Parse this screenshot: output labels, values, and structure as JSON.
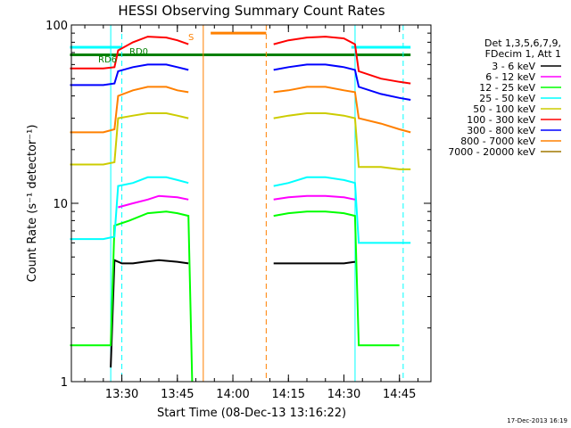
{
  "chart_data": {
    "type": "line",
    "title": "HESSI Observing Summary Count Rates",
    "xlabel": "Start Time (08-Dec-13 13:16:22)",
    "ylabel": "Count Rate (s⁻¹ detector⁻¹)",
    "yscale": "log",
    "ylim": [
      1,
      100
    ],
    "y_tick_labels": [
      "1",
      "10",
      "100"
    ],
    "x_tick_labels": [
      "13:30",
      "13:45",
      "14:00",
      "14:15",
      "14:30",
      "14:45"
    ],
    "legend": {
      "placement": "right",
      "header": [
        "Det 1,3,5,6,7,9,",
        "FDecim 1, Att 1"
      ],
      "entries": [
        {
          "label": "3 - 6 keV",
          "color": "#000000"
        },
        {
          "label": "6 - 12 keV",
          "color": "#ff00ff"
        },
        {
          "label": "12 - 25 keV",
          "color": "#00ff00"
        },
        {
          "label": "25 - 50 keV",
          "color": "#00ffff"
        },
        {
          "label": "50 - 100 keV",
          "color": "#cccc00"
        },
        {
          "label": "100 - 300 keV",
          "color": "#ff0000"
        },
        {
          "label": "300 - 800 keV",
          "color": "#0000ff"
        },
        {
          "label": "800 - 7000 keV",
          "color": "#ff8000"
        },
        {
          "label": "7000 - 20000 keV",
          "color": "#a07800"
        }
      ]
    },
    "series": [
      {
        "name": "3 - 6 keV",
        "values": [
          [
            "13:16",
            null
          ],
          [
            "13:27",
            1.2
          ],
          [
            "13:28",
            4.8
          ],
          [
            "13:30",
            4.6
          ],
          [
            "13:33",
            4.6
          ],
          [
            "13:36",
            4.7
          ],
          [
            "13:40",
            4.8
          ],
          [
            "13:45",
            4.7
          ],
          [
            "13:48",
            4.6
          ],
          [
            "13:50",
            null
          ],
          [
            "14:10",
            null
          ],
          [
            "14:11",
            4.6
          ],
          [
            "14:15",
            4.6
          ],
          [
            "14:20",
            4.6
          ],
          [
            "14:25",
            4.6
          ],
          [
            "14:30",
            4.6
          ],
          [
            "14:33",
            4.7
          ],
          [
            "14:34",
            null
          ]
        ]
      },
      {
        "name": "6 - 12 keV",
        "values": [
          [
            "13:16",
            null
          ],
          [
            "13:29",
            9.5
          ],
          [
            "13:33",
            10.0
          ],
          [
            "13:37",
            10.5
          ],
          [
            "13:40",
            11.0
          ],
          [
            "13:45",
            10.8
          ],
          [
            "13:48",
            10.5
          ],
          [
            "13:50",
            null
          ],
          [
            "14:10",
            null
          ],
          [
            "14:11",
            10.5
          ],
          [
            "14:15",
            10.8
          ],
          [
            "14:20",
            11.0
          ],
          [
            "14:25",
            11.0
          ],
          [
            "14:30",
            10.8
          ],
          [
            "14:33",
            10.5
          ],
          [
            "14:34",
            null
          ]
        ]
      },
      {
        "name": "12 - 25 keV",
        "values": [
          [
            "13:16",
            1.6
          ],
          [
            "13:20",
            1.6
          ],
          [
            "13:25",
            1.6
          ],
          [
            "13:27",
            1.6
          ],
          [
            "13:28",
            7.5
          ],
          [
            "13:32",
            8.0
          ],
          [
            "13:37",
            8.8
          ],
          [
            "13:42",
            9.0
          ],
          [
            "13:45",
            8.8
          ],
          [
            "13:48",
            8.5
          ],
          [
            "13:49",
            1.0
          ],
          [
            "14:10",
            null
          ],
          [
            "14:11",
            8.5
          ],
          [
            "14:15",
            8.8
          ],
          [
            "14:20",
            9.0
          ],
          [
            "14:25",
            9.0
          ],
          [
            "14:30",
            8.8
          ],
          [
            "14:33",
            8.5
          ],
          [
            "14:34",
            1.6
          ],
          [
            "14:40",
            1.6
          ],
          [
            "14:45",
            1.6
          ]
        ]
      },
      {
        "name": "25 - 50 keV",
        "values": [
          [
            "13:16",
            6.3
          ],
          [
            "13:20",
            6.3
          ],
          [
            "13:25",
            6.3
          ],
          [
            "13:28",
            6.5
          ],
          [
            "13:29",
            12.5
          ],
          [
            "13:33",
            13.0
          ],
          [
            "13:37",
            14.0
          ],
          [
            "13:42",
            14.0
          ],
          [
            "13:45",
            13.5
          ],
          [
            "13:48",
            13.0
          ],
          [
            "13:50",
            null
          ],
          [
            "14:10",
            null
          ],
          [
            "14:11",
            12.5
          ],
          [
            "14:15",
            13.0
          ],
          [
            "14:20",
            14.0
          ],
          [
            "14:25",
            14.0
          ],
          [
            "14:30",
            13.5
          ],
          [
            "14:33",
            13.0
          ],
          [
            "14:34",
            6.0
          ],
          [
            "14:40",
            6.0
          ],
          [
            "14:45",
            6.0
          ],
          [
            "14:48",
            6.0
          ]
        ]
      },
      {
        "name": "50 - 100 keV",
        "values": [
          [
            "13:16",
            16.5
          ],
          [
            "13:20",
            16.5
          ],
          [
            "13:25",
            16.5
          ],
          [
            "13:28",
            17.0
          ],
          [
            "13:29",
            30.0
          ],
          [
            "13:33",
            31.0
          ],
          [
            "13:37",
            32.0
          ],
          [
            "13:42",
            32.0
          ],
          [
            "13:45",
            31.0
          ],
          [
            "13:48",
            30.0
          ],
          [
            "13:50",
            null
          ],
          [
            "14:10",
            null
          ],
          [
            "14:11",
            30.0
          ],
          [
            "14:15",
            31.0
          ],
          [
            "14:20",
            32.0
          ],
          [
            "14:25",
            32.0
          ],
          [
            "14:30",
            31.0
          ],
          [
            "14:33",
            30.0
          ],
          [
            "14:34",
            16.0
          ],
          [
            "14:40",
            16.0
          ],
          [
            "14:45",
            15.5
          ],
          [
            "14:48",
            15.5
          ]
        ]
      },
      {
        "name": "100 - 300 keV",
        "values": [
          [
            "13:16",
            57
          ],
          [
            "13:20",
            57
          ],
          [
            "13:25",
            57
          ],
          [
            "13:28",
            58
          ],
          [
            "13:29",
            72
          ],
          [
            "13:33",
            80
          ],
          [
            "13:37",
            86
          ],
          [
            "13:42",
            85
          ],
          [
            "13:45",
            82
          ],
          [
            "13:48",
            78
          ],
          [
            "13:50",
            null
          ],
          [
            "14:10",
            null
          ],
          [
            "14:11",
            78
          ],
          [
            "14:15",
            82
          ],
          [
            "14:20",
            85
          ],
          [
            "14:25",
            86
          ],
          [
            "14:30",
            84
          ],
          [
            "14:33",
            78
          ],
          [
            "14:34",
            55
          ],
          [
            "14:40",
            50
          ],
          [
            "14:45",
            48
          ],
          [
            "14:48",
            47
          ]
        ]
      },
      {
        "name": "300 - 800 keV",
        "values": [
          [
            "13:16",
            46
          ],
          [
            "13:20",
            46
          ],
          [
            "13:25",
            46
          ],
          [
            "13:28",
            47
          ],
          [
            "13:29",
            55
          ],
          [
            "13:33",
            58
          ],
          [
            "13:37",
            60
          ],
          [
            "13:42",
            60
          ],
          [
            "13:45",
            58
          ],
          [
            "13:48",
            56
          ],
          [
            "13:50",
            null
          ],
          [
            "14:10",
            null
          ],
          [
            "14:11",
            56
          ],
          [
            "14:15",
            58
          ],
          [
            "14:20",
            60
          ],
          [
            "14:25",
            60
          ],
          [
            "14:30",
            58
          ],
          [
            "14:33",
            56
          ],
          [
            "14:34",
            45
          ],
          [
            "14:40",
            41
          ],
          [
            "14:45",
            39
          ],
          [
            "14:48",
            38
          ]
        ]
      },
      {
        "name": "800 - 7000 keV",
        "values": [
          [
            "13:16",
            25
          ],
          [
            "13:20",
            25
          ],
          [
            "13:25",
            25
          ],
          [
            "13:28",
            26
          ],
          [
            "13:29",
            40
          ],
          [
            "13:33",
            43
          ],
          [
            "13:37",
            45
          ],
          [
            "13:42",
            45
          ],
          [
            "13:45",
            43
          ],
          [
            "13:48",
            42
          ],
          [
            "13:50",
            null
          ],
          [
            "14:10",
            null
          ],
          [
            "14:11",
            42
          ],
          [
            "14:15",
            43
          ],
          [
            "14:20",
            45
          ],
          [
            "14:25",
            45
          ],
          [
            "14:30",
            43
          ],
          [
            "14:33",
            42
          ],
          [
            "14:34",
            30
          ],
          [
            "14:40",
            28
          ],
          [
            "14:45",
            26
          ],
          [
            "14:48",
            25
          ]
        ]
      },
      {
        "name": "7000 - 20000 keV",
        "values": [
          [
            "13:16",
            null
          ],
          [
            "14:48",
            null
          ]
        ]
      }
    ],
    "annotations": [
      {
        "text": "RD6",
        "color": "#008000"
      },
      {
        "text": "RD0",
        "color": "#008000"
      },
      {
        "text": "S",
        "color": "#ff8000"
      }
    ],
    "overlays": [
      {
        "kind": "level-line",
        "value": 75,
        "color": "#00ffff",
        "ranges": [
          [
            "13:16",
            "13:30"
          ],
          [
            "14:32",
            "14:48"
          ]
        ]
      },
      {
        "kind": "level-line",
        "value": 68,
        "color": "#008000",
        "ranges": [
          [
            "13:16",
            "14:48"
          ]
        ]
      },
      {
        "kind": "level-line",
        "value": 90,
        "color": "#ff8000",
        "ranges": [
          [
            "13:54",
            "14:09"
          ]
        ]
      },
      {
        "kind": "vline",
        "time": "13:30",
        "color": "#00ffff",
        "style": "dashed"
      },
      {
        "kind": "vline",
        "time": "14:46",
        "color": "#00ffff",
        "style": "dashed"
      },
      {
        "kind": "vline",
        "time": "13:52",
        "color": "#ff8000",
        "style": "solid"
      },
      {
        "kind": "vline",
        "time": "14:09",
        "color": "#ff8000",
        "style": "dashed"
      },
      {
        "kind": "vline",
        "time": "13:27",
        "color": "#00ffff",
        "style": "solid"
      },
      {
        "kind": "vline",
        "time": "14:33",
        "color": "#00ffff",
        "style": "solid"
      }
    ],
    "timestamp": "17-Dec-2013 16:19"
  }
}
